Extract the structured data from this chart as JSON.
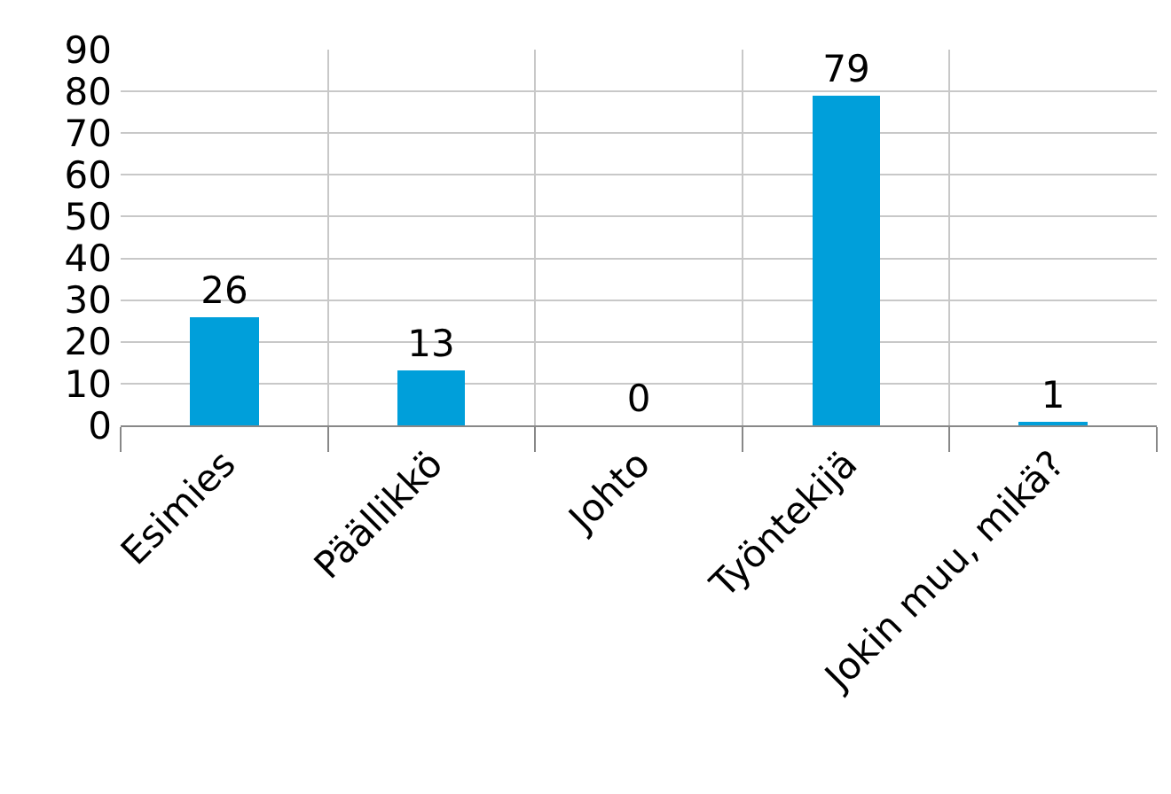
{
  "chart_data": {
    "type": "bar",
    "categories": [
      "Esimies",
      "Päällikkö",
      "Johto",
      "Työntekijä",
      "Jokin muu, mikä?"
    ],
    "values": [
      26,
      13,
      0,
      79,
      1
    ],
    "color": "#009fda",
    "ylim": [
      0,
      90
    ],
    "yticks": [
      0,
      10,
      20,
      30,
      40,
      50,
      60,
      70,
      80,
      90
    ],
    "grid": true,
    "data_labels": true
  }
}
